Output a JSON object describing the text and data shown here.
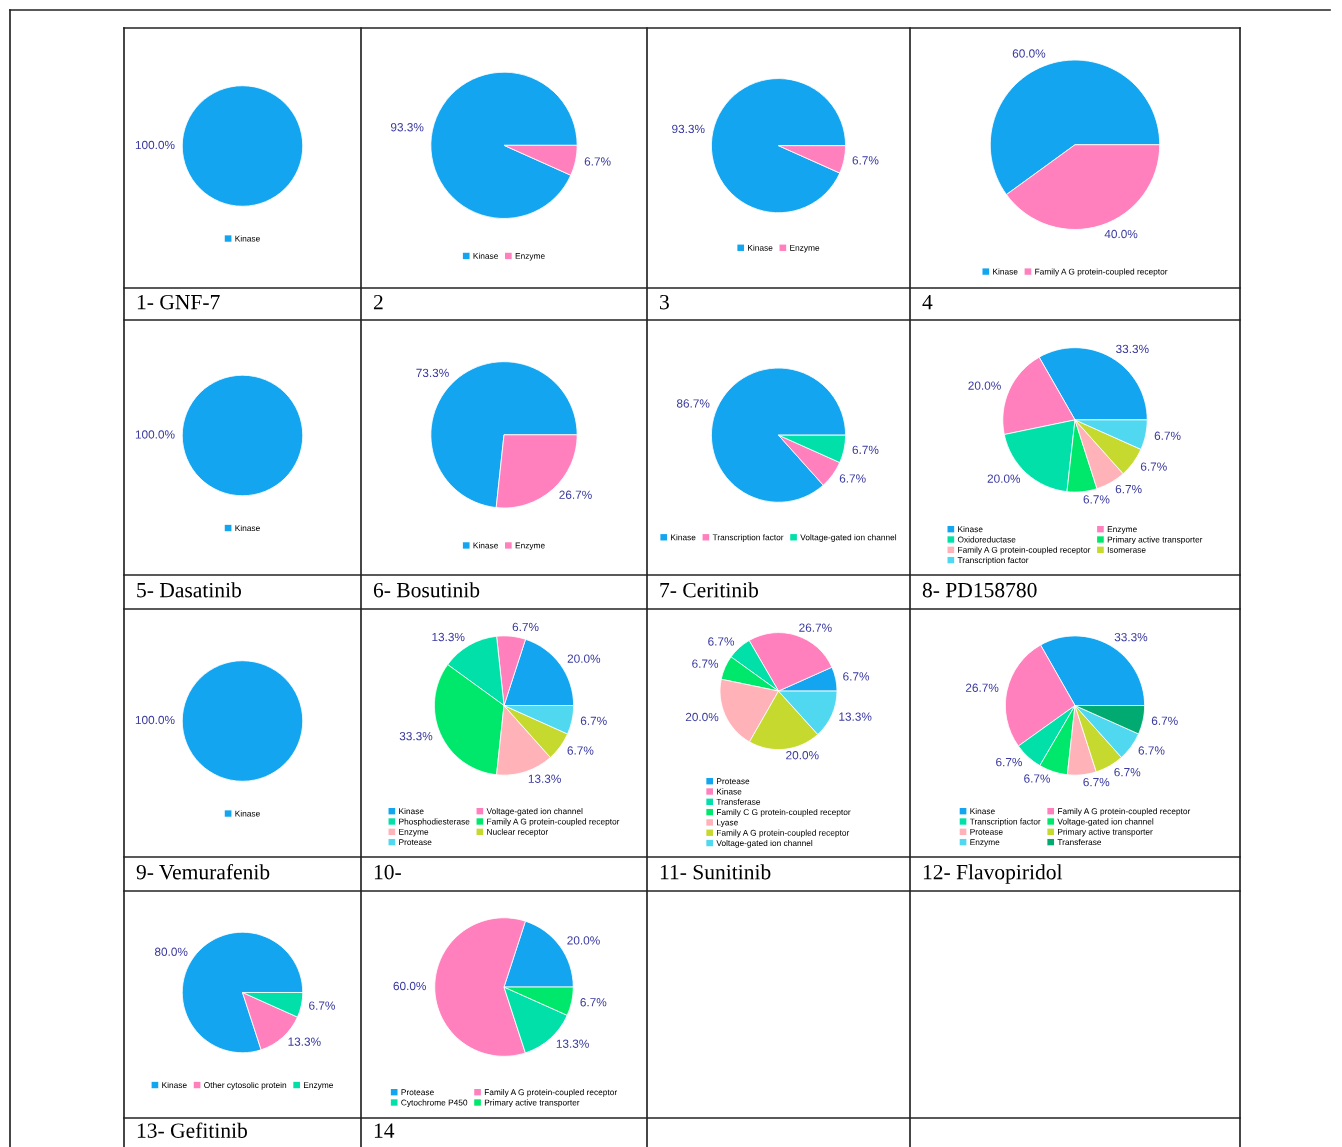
{
  "chart_data": [
    {
      "type": "pie",
      "title": "1- GNF-7",
      "categories": [
        "Kinase"
      ],
      "values": [
        100.0
      ],
      "colors": [
        "#14a5f0"
      ],
      "value_labels": [
        "100.0%"
      ],
      "legend": "bottom"
    },
    {
      "type": "pie",
      "title": "2",
      "categories": [
        "Kinase",
        "Enzyme"
      ],
      "values": [
        93.3,
        6.7
      ],
      "colors": [
        "#14a5f0",
        "#ff80bd"
      ],
      "value_labels": [
        "93.3%",
        "6.7%"
      ],
      "legend": "bottom"
    },
    {
      "type": "pie",
      "title": "3",
      "categories": [
        "Kinase",
        "Enzyme"
      ],
      "values": [
        93.3,
        6.7
      ],
      "colors": [
        "#14a5f0",
        "#ff80bd"
      ],
      "value_labels": [
        "93.3%",
        "6.7%"
      ],
      "legend": "bottom"
    },
    {
      "type": "pie",
      "title": "4",
      "categories": [
        "Kinase",
        "Family A G protein-coupled receptor"
      ],
      "values": [
        60.0,
        40.0
      ],
      "colors": [
        "#14a5f0",
        "#ff80bd"
      ],
      "value_labels": [
        "60.0%",
        "40.0%"
      ],
      "legend": "bottom"
    },
    {
      "type": "pie",
      "title": "5- Dasatinib",
      "categories": [
        "Kinase"
      ],
      "values": [
        100.0
      ],
      "colors": [
        "#14a5f0"
      ],
      "value_labels": [
        "100.0%"
      ],
      "legend": "bottom"
    },
    {
      "type": "pie",
      "title": "6- Bosutinib",
      "categories": [
        "Kinase",
        "Enzyme"
      ],
      "values": [
        73.3,
        26.7
      ],
      "colors": [
        "#14a5f0",
        "#ff80bd"
      ],
      "value_labels": [
        "73.3%",
        "26.7%"
      ],
      "legend": "bottom"
    },
    {
      "type": "pie",
      "title": "7- Ceritinib",
      "categories": [
        "Kinase",
        "Transcription factor",
        "Voltage-gated ion channel"
      ],
      "values": [
        86.7,
        6.7,
        6.7
      ],
      "colors": [
        "#14a5f0",
        "#ff80bd",
        "#00e0a8"
      ],
      "value_labels": [
        "86.7%",
        "6.7%",
        "6.7%"
      ],
      "legend": "bottom"
    },
    {
      "type": "pie",
      "title": "8- PD158780",
      "categories": [
        "Kinase",
        "Enzyme",
        "Oxidoreductase",
        "Primary active transporter",
        "Family A G protein-coupled receptor",
        "Isomerase",
        "Transcription factor"
      ],
      "values": [
        33.3,
        20.0,
        20.0,
        6.7,
        6.7,
        6.7,
        6.7
      ],
      "colors": [
        "#14a5f0",
        "#ff80bd",
        "#00e0a8",
        "#00e86c",
        "#ffb3b8",
        "#c6d92e",
        "#4fd8f0"
      ],
      "value_labels": [
        "33.3%",
        "20.0%",
        "20.0%",
        "6.7%",
        "6.7%",
        "6.7%",
        "6.7%"
      ],
      "legend": "bottom"
    },
    {
      "type": "pie",
      "title": "9- Vemurafenib",
      "categories": [
        "Kinase"
      ],
      "values": [
        100.0
      ],
      "colors": [
        "#14a5f0"
      ],
      "value_labels": [
        "100.0%"
      ],
      "legend": "bottom"
    },
    {
      "type": "pie",
      "title": "10-",
      "categories": [
        "Kinase",
        "Voltage-gated ion channel",
        "Phosphodiesterase",
        "Family A G protein-coupled receptor",
        "Enzyme",
        "Nuclear receptor",
        "Protease"
      ],
      "values": [
        20.0,
        6.7,
        13.3,
        33.3,
        13.3,
        6.7,
        6.7
      ],
      "colors": [
        "#14a5f0",
        "#ff80bd",
        "#00e0a8",
        "#00e86c",
        "#ffb3b8",
        "#c6d92e",
        "#4fd8f0"
      ],
      "value_labels": [
        "20.0%",
        "6.7%",
        "13.3%",
        "33.3%",
        "13.3%",
        "6.7%",
        "6.7%"
      ],
      "legend": "bottom"
    },
    {
      "type": "pie",
      "title": "11- Sunitinib",
      "categories": [
        "Protease",
        "Kinase",
        "Transferase",
        "Family C G protein-coupled receptor",
        "Lyase",
        "Family A G protein-coupled receptor",
        "Voltage-gated ion channel"
      ],
      "values": [
        6.7,
        26.7,
        6.7,
        6.7,
        20.0,
        20.0,
        13.3
      ],
      "colors": [
        "#14a5f0",
        "#ff80bd",
        "#00e0a8",
        "#00e86c",
        "#ffb3b8",
        "#c6d92e",
        "#4fd8f0"
      ],
      "value_labels": [
        "6.7%",
        "26.7%",
        "6.7%",
        "6.7%",
        "20.0%",
        "20.0%",
        "13.3%"
      ],
      "legend": "bottom"
    },
    {
      "type": "pie",
      "title": "12- Flavopiridol",
      "categories": [
        "Kinase",
        "Family A G protein-coupled receptor",
        "Transcription factor",
        "Voltage-gated ion channel",
        "Protease",
        "Primary active transporter",
        "Enzyme",
        "Transferase"
      ],
      "values": [
        33.3,
        26.7,
        6.7,
        6.7,
        6.7,
        6.7,
        6.7,
        6.7
      ],
      "colors": [
        "#14a5f0",
        "#ff80bd",
        "#00e0a8",
        "#00e86c",
        "#ffb3b8",
        "#c6d92e",
        "#4fd8f0",
        "#00aa70"
      ],
      "value_labels": [
        "33.3%",
        "26.7%",
        "6.7%",
        "6.7%",
        "6.7%",
        "6.7%",
        "6.7%",
        "6.7%"
      ],
      "legend": "bottom"
    },
    {
      "type": "pie",
      "title": "13- Gefitinib",
      "categories": [
        "Kinase",
        "Other cytosolic protein",
        "Enzyme"
      ],
      "values": [
        80.0,
        13.3,
        6.7
      ],
      "colors": [
        "#14a5f0",
        "#ff80bd",
        "#00e0a8"
      ],
      "value_labels": [
        "80.0%",
        "13.3%",
        "6.7%"
      ],
      "legend": "bottom"
    },
    {
      "type": "pie",
      "title": "14",
      "categories": [
        "Protease",
        "Family A G protein-coupled receptor",
        "Cytochrome P450",
        "Primary active transporter"
      ],
      "values": [
        20.0,
        60.0,
        13.3,
        6.7
      ],
      "colors": [
        "#14a5f0",
        "#ff80bd",
        "#00e0a8",
        "#00e86c"
      ],
      "value_labels": [
        "20.0%",
        "60.0%",
        "13.3%",
        "6.7%"
      ],
      "legend": "bottom"
    }
  ]
}
